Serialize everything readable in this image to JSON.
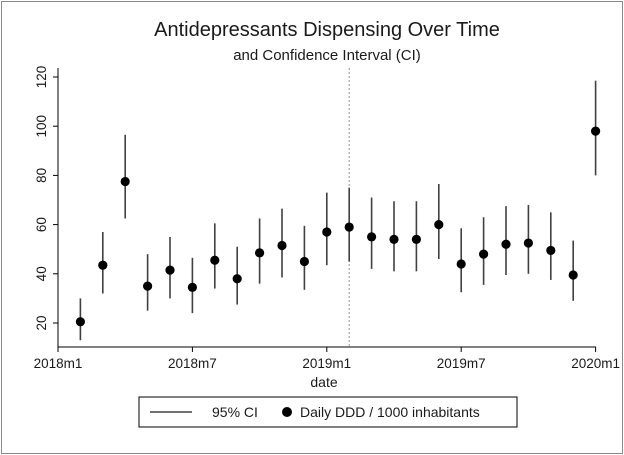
{
  "chart_data": {
    "type": "scatter",
    "title": "Antidepressants Dispensing Over Time",
    "subtitle": "and Confidence Interval (CI)",
    "xlabel": "date",
    "ylabel": "",
    "xlim": [
      0,
      24
    ],
    "ylim": [
      10,
      125
    ],
    "x_ticks": [
      {
        "value": 0,
        "label": "2018m1"
      },
      {
        "value": 6,
        "label": "2018m7"
      },
      {
        "value": 12,
        "label": "2019m1"
      },
      {
        "value": 18,
        "label": "2019m7"
      },
      {
        "value": 24,
        "label": "2020m1"
      }
    ],
    "y_ticks": [
      20,
      40,
      60,
      80,
      100,
      120
    ],
    "reference_line_x": 13,
    "series": [
      {
        "name": "Daily DDD / 1000 inhabitants",
        "kind": "point",
        "points": [
          {
            "x": 1,
            "y": 20.5
          },
          {
            "x": 2,
            "y": 43.5
          },
          {
            "x": 3,
            "y": 77.5
          },
          {
            "x": 4,
            "y": 35
          },
          {
            "x": 5,
            "y": 41.5
          },
          {
            "x": 6,
            "y": 34.5
          },
          {
            "x": 7,
            "y": 45.5
          },
          {
            "x": 8,
            "y": 38
          },
          {
            "x": 9,
            "y": 48.5
          },
          {
            "x": 10,
            "y": 51.5
          },
          {
            "x": 11,
            "y": 45
          },
          {
            "x": 12,
            "y": 57
          },
          {
            "x": 13,
            "y": 59
          },
          {
            "x": 14,
            "y": 55
          },
          {
            "x": 15,
            "y": 54
          },
          {
            "x": 16,
            "y": 54
          },
          {
            "x": 17,
            "y": 60
          },
          {
            "x": 18,
            "y": 44
          },
          {
            "x": 19,
            "y": 48
          },
          {
            "x": 20,
            "y": 52
          },
          {
            "x": 21,
            "y": 52.5
          },
          {
            "x": 22,
            "y": 49.5
          },
          {
            "x": 23,
            "y": 39.5
          },
          {
            "x": 24,
            "y": 98
          }
        ]
      },
      {
        "name": "95% CI",
        "kind": "range",
        "ranges": [
          {
            "x": 1,
            "lo": 13,
            "hi": 30
          },
          {
            "x": 2,
            "lo": 32,
            "hi": 57
          },
          {
            "x": 3,
            "lo": 62.5,
            "hi": 96.5
          },
          {
            "x": 4,
            "lo": 25,
            "hi": 48
          },
          {
            "x": 5,
            "lo": 30,
            "hi": 55
          },
          {
            "x": 6,
            "lo": 24,
            "hi": 46.5
          },
          {
            "x": 7,
            "lo": 34,
            "hi": 60.5
          },
          {
            "x": 8,
            "lo": 27.5,
            "hi": 51
          },
          {
            "x": 9,
            "lo": 36,
            "hi": 62.5
          },
          {
            "x": 10,
            "lo": 38.5,
            "hi": 66.5
          },
          {
            "x": 11,
            "lo": 33.5,
            "hi": 59.5
          },
          {
            "x": 12,
            "lo": 43.5,
            "hi": 73
          },
          {
            "x": 13,
            "lo": 45,
            "hi": 75
          },
          {
            "x": 14,
            "lo": 42,
            "hi": 71
          },
          {
            "x": 15,
            "lo": 41,
            "hi": 69.5
          },
          {
            "x": 16,
            "lo": 41,
            "hi": 69.5
          },
          {
            "x": 17,
            "lo": 46,
            "hi": 76.5
          },
          {
            "x": 18,
            "lo": 32.5,
            "hi": 58.5
          },
          {
            "x": 19,
            "lo": 35.5,
            "hi": 63
          },
          {
            "x": 20,
            "lo": 39.5,
            "hi": 67.5
          },
          {
            "x": 21,
            "lo": 40,
            "hi": 68
          },
          {
            "x": 22,
            "lo": 37.5,
            "hi": 65
          },
          {
            "x": 23,
            "lo": 29,
            "hi": 53.5
          },
          {
            "x": 24,
            "lo": 80,
            "hi": 118.5
          }
        ]
      }
    ],
    "legend": {
      "position": "bottom",
      "entries": [
        {
          "label": "95% CI",
          "symbol": "line"
        },
        {
          "label": "Daily DDD / 1000 inhabitants",
          "symbol": "dot"
        }
      ]
    }
  },
  "colors": {
    "marker": "#000000",
    "ci_line": "#404040",
    "axis": "#000000",
    "refline": "#8c8c8c",
    "frame": "#8a8a8a"
  }
}
